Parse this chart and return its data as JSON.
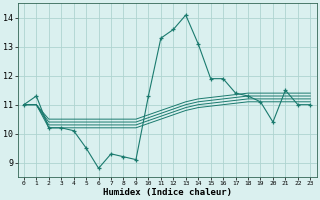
{
  "main_line_x": [
    0,
    1,
    2,
    3,
    4,
    5,
    6,
    7,
    8,
    9,
    10,
    11,
    12,
    13,
    14,
    15,
    16,
    17,
    18,
    19,
    20,
    21,
    22,
    23
  ],
  "main_line_y": [
    11.0,
    11.3,
    10.2,
    10.2,
    10.1,
    9.5,
    8.8,
    9.3,
    9.2,
    9.1,
    11.3,
    13.3,
    13.6,
    14.1,
    13.1,
    11.9,
    11.9,
    11.4,
    11.3,
    11.1,
    10.4,
    11.5,
    11.0,
    11.0
  ],
  "band_lines": [
    [
      11.0,
      11.0,
      10.2,
      10.2,
      10.2,
      10.2,
      10.2,
      10.2,
      10.2,
      10.2,
      10.35,
      10.5,
      10.65,
      10.8,
      10.9,
      10.95,
      11.0,
      11.05,
      11.1,
      11.1,
      11.1,
      11.1,
      11.1,
      11.1
    ],
    [
      11.0,
      11.0,
      10.3,
      10.3,
      10.3,
      10.3,
      10.3,
      10.3,
      10.3,
      10.3,
      10.45,
      10.6,
      10.75,
      10.9,
      11.0,
      11.05,
      11.1,
      11.15,
      11.2,
      11.2,
      11.2,
      11.2,
      11.2,
      11.2
    ],
    [
      11.0,
      11.0,
      10.4,
      10.4,
      10.4,
      10.4,
      10.4,
      10.4,
      10.4,
      10.4,
      10.55,
      10.7,
      10.85,
      11.0,
      11.1,
      11.15,
      11.2,
      11.25,
      11.3,
      11.3,
      11.3,
      11.3,
      11.3,
      11.3
    ],
    [
      11.0,
      11.0,
      10.5,
      10.5,
      10.5,
      10.5,
      10.5,
      10.5,
      10.5,
      10.5,
      10.65,
      10.8,
      10.95,
      11.1,
      11.2,
      11.25,
      11.3,
      11.35,
      11.4,
      11.4,
      11.4,
      11.4,
      11.4,
      11.4
    ]
  ],
  "line_color": "#1a7a6e",
  "bg_color": "#daf0ef",
  "grid_color": "#aed4d0",
  "xlabel": "Humidex (Indice chaleur)",
  "ylim": [
    8.5,
    14.5
  ],
  "xlim": [
    -0.5,
    23.5
  ],
  "yticks": [
    9,
    10,
    11,
    12,
    13,
    14
  ],
  "xticks": [
    0,
    1,
    2,
    3,
    4,
    5,
    6,
    7,
    8,
    9,
    10,
    11,
    12,
    13,
    14,
    15,
    16,
    17,
    18,
    19,
    20,
    21,
    22,
    23
  ]
}
